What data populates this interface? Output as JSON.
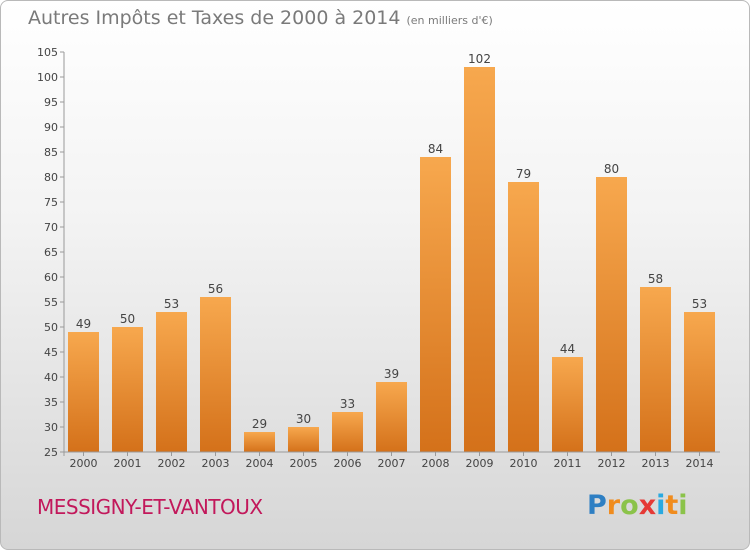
{
  "header": {
    "title": "Autres Impôts et Taxes de 2000 à 2014",
    "unit": "(en milliers d'€)"
  },
  "commune": "MESSIGNY-ET-VANTOUX",
  "logo": {
    "letters": [
      "P",
      "r",
      "o",
      "x",
      "i",
      "t",
      "i"
    ],
    "colors": [
      "#2e7fc3",
      "#f08c1e",
      "#8bc34a",
      "#e53935",
      "#29a9e0",
      "#f08c1e",
      "#8bc34a"
    ]
  },
  "colors": {
    "bar_top": "#f7a84e",
    "bar_bottom": "#d4711a",
    "title": "#7a7a7a",
    "commune": "#c2185b"
  },
  "chart_data": {
    "type": "bar",
    "categories": [
      "2000",
      "2001",
      "2002",
      "2003",
      "2004",
      "2005",
      "2006",
      "2007",
      "2008",
      "2009",
      "2010",
      "2011",
      "2012",
      "2013",
      "2014"
    ],
    "values": [
      49,
      50,
      53,
      56,
      29,
      30,
      33,
      39,
      84,
      102,
      79,
      44,
      80,
      58,
      53
    ],
    "title": "Autres Impôts et Taxes de 2000 à 2014",
    "xlabel": "",
    "ylabel": "",
    "ylim": [
      25,
      105
    ],
    "yticks": [
      25,
      30,
      35,
      40,
      45,
      50,
      55,
      60,
      65,
      70,
      75,
      80,
      85,
      90,
      95,
      100,
      105
    ],
    "grid": false,
    "data_labels": true
  }
}
